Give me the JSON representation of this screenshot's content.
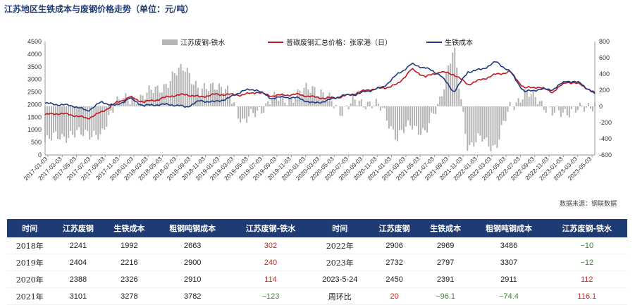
{
  "title": "江苏地区生铁成本与废钢价格走势（单位：元/吨）",
  "source": "数据来源：钢联数据",
  "chart_data": {
    "type": "line",
    "legend": [
      "江苏废钢-铁水",
      "普碳废钢汇总价格：张家港（日）",
      "生铁成本"
    ],
    "legend_placement": "top",
    "colors": {
      "spread": "#b3b3b3",
      "scrap": "#c0181f",
      "iron": "#1f3b84"
    },
    "y_left": {
      "min": 0,
      "max": 4500,
      "ticks": [
        0,
        500,
        1000,
        1500,
        2000,
        2500,
        3000,
        3500,
        4000,
        4500
      ]
    },
    "y_right": {
      "min": -600,
      "max": 800,
      "ticks": [
        -600,
        -400,
        -200,
        0,
        200,
        400,
        600,
        800
      ]
    },
    "x_tick_labels": [
      "2017-01-03",
      "2017-03-03",
      "2017-05-03",
      "2017-07-03",
      "2017-09-03",
      "2017-11-03",
      "2018-01-03",
      "2018-03-03",
      "2018-05-03",
      "2018-07-03",
      "2018-09-03",
      "2018-11-03",
      "2019-01-03",
      "2019-03-03",
      "2019-05-03",
      "2019-07-03",
      "2019-09-03",
      "2019-11-03",
      "2020-01-03",
      "2020-03-03",
      "2020-05-03",
      "2020-07-03",
      "2020-09-03",
      "2020-11-03",
      "2021-01-03",
      "2021-03-03",
      "2021-05-03",
      "2021-07-03",
      "2021-09-03",
      "2021-11-03",
      "2022-01-03",
      "2022-03-03",
      "2022-05-03",
      "2022-07-03",
      "2022-09-03",
      "2022-11-03",
      "2023-01-03",
      "2023-03-03",
      "2023-05-03"
    ],
    "series": [
      {
        "name": "普碳废钢汇总价格：张家港（日）",
        "axis": "left",
        "values": [
          1600,
          1650,
          1580,
          1450,
          1700,
          2050,
          2300,
          2100,
          2200,
          2350,
          2400,
          2300,
          2400,
          2400,
          2380,
          2500,
          2350,
          2380,
          2400,
          2300,
          2250,
          2300,
          2450,
          2600,
          2650,
          2800,
          3400,
          3100,
          3300,
          3200,
          2800,
          3000,
          3200,
          3300,
          2650,
          2700,
          2500,
          2900,
          2800,
          2450
        ]
      },
      {
        "name": "生铁成本",
        "axis": "left",
        "values": [
          2050,
          2000,
          1950,
          1750,
          2100,
          1950,
          2250,
          1950,
          2000,
          2000,
          1900,
          2150,
          2100,
          2250,
          2550,
          2600,
          2250,
          2300,
          2250,
          2050,
          2150,
          2350,
          2400,
          2550,
          2700,
          3200,
          3600,
          3450,
          3200,
          2500,
          3300,
          3400,
          3700,
          3300,
          2500,
          2600,
          2600,
          2950,
          2850,
          2400
        ]
      },
      {
        "name": "江苏废钢-铁水",
        "axis": "right",
        "values": [
          -450,
          -350,
          -370,
          -300,
          -400,
          100,
          50,
          150,
          200,
          350,
          500,
          150,
          300,
          150,
          -170,
          -100,
          100,
          80,
          150,
          250,
          100,
          -50,
          50,
          50,
          -50,
          -400,
          -200,
          -350,
          100,
          700,
          -500,
          -400,
          -500,
          0,
          150,
          100,
          -100,
          -50,
          -50,
          50
        ]
      }
    ]
  },
  "table": {
    "headers": [
      "时间",
      "江苏废钢",
      "生铁成本",
      "粗钢吨钢成本",
      "江苏废钢-铁水",
      "时间",
      "江苏废钢",
      "生铁成本",
      "粗钢吨钢成本",
      "江苏废钢-铁水"
    ],
    "rows": [
      [
        "2018年",
        "2241",
        "1992",
        "2663",
        "302",
        "2022年",
        "2906",
        "2969",
        "3486",
        "−10"
      ],
      [
        "2019年",
        "2404",
        "2216",
        "2900",
        "240",
        "2023年",
        "2732",
        "2797",
        "3307",
        "−12"
      ],
      [
        "2020年",
        "2388",
        "2326",
        "2910",
        "114",
        "2023-5-24",
        "2450",
        "2391",
        "2911",
        "112"
      ],
      [
        "2021年",
        "3101",
        "3278",
        "3782",
        "−123",
        "周环比",
        "20",
        "−96.1",
        "−74.4",
        "116.1"
      ]
    ]
  }
}
